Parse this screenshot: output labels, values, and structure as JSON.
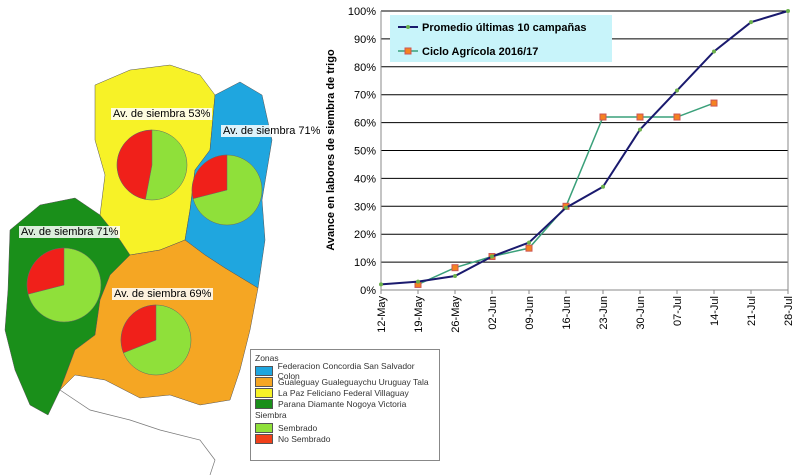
{
  "map": {
    "pie_labels": [
      "Av. de siembra 53%",
      "Av. de siembra 71%",
      "Av. de siembra 71%",
      "Av. de siembra 69%"
    ],
    "pies": [
      {
        "zone": "La Paz",
        "sembrado": 53
      },
      {
        "zone": "Federacion",
        "sembrado": 71
      },
      {
        "zone": "Parana",
        "sembrado": 71
      },
      {
        "zone": "Gualeguay",
        "sembrado": 69
      }
    ],
    "legend": {
      "zonas_title": "Zonas",
      "zonas": [
        {
          "label": "Federacion Concordia San Salvador Colon",
          "color": "#1fa6df"
        },
        {
          "label": "Gualeguay Gualeguaychu Uruguay  Tala",
          "color": "#f5a623"
        },
        {
          "label": "La Paz Feliciano Federal  Villaguay",
          "color": "#f7f227"
        },
        {
          "label": "Parana Diamante Nogoya Victoria",
          "color": "#1a8f1a"
        }
      ],
      "siembra_title": "Siembra",
      "siembra": [
        {
          "label": "Sembrado",
          "color": "#8fe03a"
        },
        {
          "label": "No Sembrado",
          "color": "#f0401a"
        }
      ]
    }
  },
  "chart_data": {
    "type": "line",
    "ylabel": "Avance en labores de siembra de trigo",
    "categories": [
      "12-May",
      "19-May",
      "26-May",
      "02-Jun",
      "09-Jun",
      "16-Jun",
      "23-Jun",
      "30-Jun",
      "07-Jul",
      "14-Jul",
      "21-Jul",
      "28-Jul"
    ],
    "yticks": [
      "0%",
      "10%",
      "20%",
      "30%",
      "40%",
      "50%",
      "60%",
      "70%",
      "80%",
      "90%",
      "100%"
    ],
    "ylim": [
      0,
      100
    ],
    "legend_position": "top-left",
    "series": [
      {
        "name": "Promedio últimas 10 campañas",
        "color": "#1a1a6e",
        "values": [
          2,
          3,
          5,
          12,
          17,
          29.5,
          37,
          57.5,
          71.5,
          85.5,
          96,
          100
        ]
      },
      {
        "name": "Ciclo Agrícola 2016/17",
        "color": "#3aa07a",
        "values": [
          null,
          2,
          8,
          12,
          15,
          30,
          62,
          62,
          62,
          67,
          null,
          null
        ]
      }
    ]
  }
}
